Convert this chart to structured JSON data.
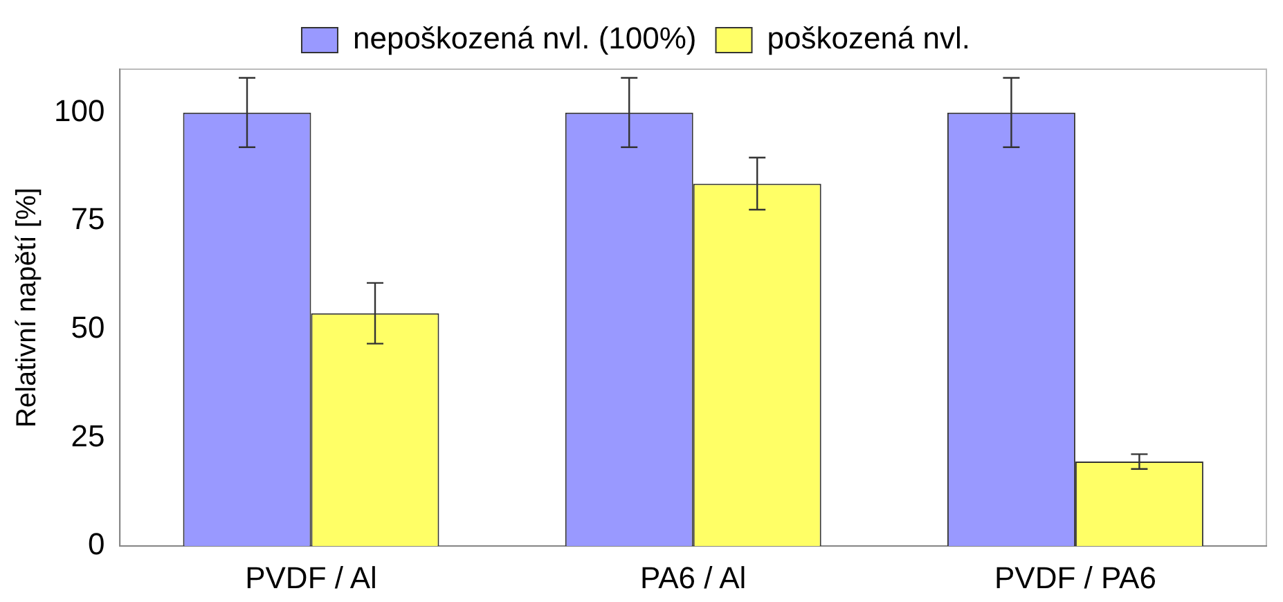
{
  "chart_data": {
    "type": "bar",
    "ylabel": "Relativní napětí [%]",
    "categories": [
      "PVDF / Al",
      "PA6 / Al",
      "PVDF / PA6"
    ],
    "series": [
      {
        "name": "nepoškozená nvl. (100%)",
        "color": "#9999ff",
        "values": [
          100,
          100,
          100
        ],
        "errors": [
          8,
          8,
          8
        ]
      },
      {
        "name": "poškozená nvl.",
        "color": "#ffff66",
        "values": [
          53.7,
          83.6,
          19.5
        ],
        "errors": [
          7,
          6,
          1.7
        ]
      }
    ],
    "ylim": [
      0,
      110
    ],
    "yticks": [
      0,
      25,
      50,
      75,
      100
    ],
    "grid": false,
    "legend": "top"
  }
}
